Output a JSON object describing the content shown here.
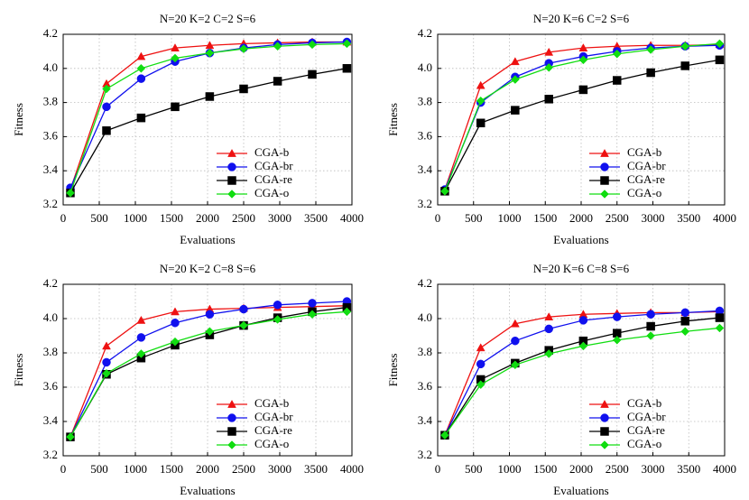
{
  "chart_data": [
    {
      "type": "line",
      "title": "N=20  K=2  C=2  S=6",
      "xlabel": "Evaluations",
      "ylabel": "Fitness",
      "x": [
        100,
        600,
        1080,
        1550,
        2030,
        2500,
        2970,
        3450,
        3930
      ],
      "xlim": [
        0,
        4000
      ],
      "xticks": [
        0,
        500,
        1000,
        1500,
        2000,
        2500,
        3000,
        3500,
        4000
      ],
      "ylim": [
        3.2,
        4.2
      ],
      "yticks": [
        3.2,
        3.4,
        3.6,
        3.8,
        {
          "value": 4,
          "label": "4.0"
        },
        4.2
      ],
      "grid": true,
      "legend": "lower right",
      "series": [
        {
          "name": "CGA-b",
          "color": "#ee1111",
          "marker": "triangle",
          "values": [
            3.29,
            3.91,
            4.07,
            4.12,
            4.135,
            4.145,
            4.15,
            4.155,
            4.155
          ]
        },
        {
          "name": "CGA-br",
          "color": "#1010ee",
          "marker": "circle",
          "values": [
            3.3,
            3.775,
            3.94,
            4.04,
            4.09,
            4.12,
            4.14,
            4.15,
            4.155
          ]
        },
        {
          "name": "CGA-re",
          "color": "#000000",
          "marker": "square",
          "values": [
            3.27,
            3.635,
            3.71,
            3.775,
            3.835,
            3.88,
            3.925,
            3.965,
            4.0
          ]
        },
        {
          "name": "CGA-o",
          "color": "#11dd11",
          "marker": "diamond",
          "values": [
            3.27,
            3.88,
            4.0,
            4.06,
            4.09,
            4.115,
            4.13,
            4.14,
            4.145
          ]
        }
      ]
    },
    {
      "type": "line",
      "title": "N=20  K=6  C=2  S=6",
      "xlabel": "Evaluations",
      "ylabel": "Fitness",
      "x": [
        100,
        600,
        1080,
        1550,
        2030,
        2500,
        2970,
        3450,
        3930
      ],
      "xlim": [
        0,
        4000
      ],
      "xticks": [
        0,
        500,
        1000,
        1500,
        2000,
        2500,
        3000,
        3500,
        4000
      ],
      "ylim": [
        3.2,
        4.2
      ],
      "yticks": [
        3.2,
        3.4,
        3.6,
        3.8,
        {
          "value": 4,
          "label": "4.0"
        },
        4.2
      ],
      "grid": true,
      "legend": "lower right",
      "series": [
        {
          "name": "CGA-b",
          "color": "#ee1111",
          "marker": "triangle",
          "values": [
            3.29,
            3.9,
            4.04,
            4.095,
            4.12,
            4.13,
            4.135,
            4.135,
            4.14
          ]
        },
        {
          "name": "CGA-br",
          "color": "#1010ee",
          "marker": "circle",
          "values": [
            3.29,
            3.8,
            3.95,
            4.03,
            4.07,
            4.1,
            4.12,
            4.13,
            4.135
          ]
        },
        {
          "name": "CGA-re",
          "color": "#000000",
          "marker": "square",
          "values": [
            3.28,
            3.68,
            3.755,
            3.82,
            3.875,
            3.93,
            3.975,
            4.015,
            4.05
          ]
        },
        {
          "name": "CGA-o",
          "color": "#11dd11",
          "marker": "diamond",
          "values": [
            3.28,
            3.81,
            3.935,
            4.005,
            4.05,
            4.085,
            4.11,
            4.13,
            4.145
          ]
        }
      ]
    },
    {
      "type": "line",
      "title": "N=20  K=2  C=8  S=6",
      "xlabel": "Evaluations",
      "ylabel": "Fitness",
      "x": [
        100,
        600,
        1080,
        1550,
        2030,
        2500,
        2970,
        3450,
        3930
      ],
      "xlim": [
        0,
        4000
      ],
      "xticks": [
        0,
        500,
        1000,
        1500,
        2000,
        2500,
        3000,
        3500,
        4000
      ],
      "ylim": [
        3.2,
        4.2
      ],
      "yticks": [
        3.2,
        3.4,
        3.6,
        3.8,
        {
          "value": 4,
          "label": "4.0"
        },
        4.2
      ],
      "grid": true,
      "legend": "lower right",
      "series": [
        {
          "name": "CGA-b",
          "color": "#ee1111",
          "marker": "triangle",
          "values": [
            3.31,
            3.84,
            3.99,
            4.04,
            4.055,
            4.06,
            4.065,
            4.07,
            4.075
          ]
        },
        {
          "name": "CGA-br",
          "color": "#1010ee",
          "marker": "circle",
          "values": [
            3.31,
            3.745,
            3.89,
            3.975,
            4.025,
            4.055,
            4.08,
            4.09,
            4.1
          ]
        },
        {
          "name": "CGA-re",
          "color": "#000000",
          "marker": "square",
          "values": [
            3.31,
            3.675,
            3.77,
            3.845,
            3.905,
            3.96,
            4.005,
            4.04,
            4.065
          ]
        },
        {
          "name": "CGA-o",
          "color": "#11dd11",
          "marker": "diamond",
          "values": [
            3.31,
            3.68,
            3.795,
            3.865,
            3.925,
            3.96,
            3.995,
            4.025,
            4.04
          ]
        }
      ]
    },
    {
      "type": "line",
      "title": "N=20  K=6  C=8  S=6",
      "xlabel": "Evaluations",
      "ylabel": "Fitness",
      "x": [
        100,
        600,
        1080,
        1550,
        2030,
        2500,
        2970,
        3450,
        3930
      ],
      "xlim": [
        0,
        4000
      ],
      "xticks": [
        0,
        500,
        1000,
        1500,
        2000,
        2500,
        3000,
        3500,
        4000
      ],
      "ylim": [
        3.2,
        4.2
      ],
      "yticks": [
        3.2,
        3.4,
        3.6,
        3.8,
        {
          "value": 4,
          "label": "4.0"
        },
        4.2
      ],
      "grid": true,
      "legend": "lower right",
      "series": [
        {
          "name": "CGA-b",
          "color": "#ee1111",
          "marker": "triangle",
          "values": [
            3.32,
            3.83,
            3.97,
            4.01,
            4.025,
            4.03,
            4.035,
            4.035,
            4.04
          ]
        },
        {
          "name": "CGA-br",
          "color": "#1010ee",
          "marker": "circle",
          "values": [
            3.32,
            3.735,
            3.87,
            3.94,
            3.99,
            4.01,
            4.025,
            4.035,
            4.045
          ]
        },
        {
          "name": "CGA-re",
          "color": "#000000",
          "marker": "square",
          "values": [
            3.32,
            3.645,
            3.74,
            3.815,
            3.87,
            3.915,
            3.955,
            3.985,
            4.005
          ]
        },
        {
          "name": "CGA-o",
          "color": "#11dd11",
          "marker": "diamond",
          "values": [
            3.32,
            3.615,
            3.73,
            3.795,
            3.84,
            3.875,
            3.9,
            3.925,
            3.945
          ]
        }
      ]
    }
  ]
}
